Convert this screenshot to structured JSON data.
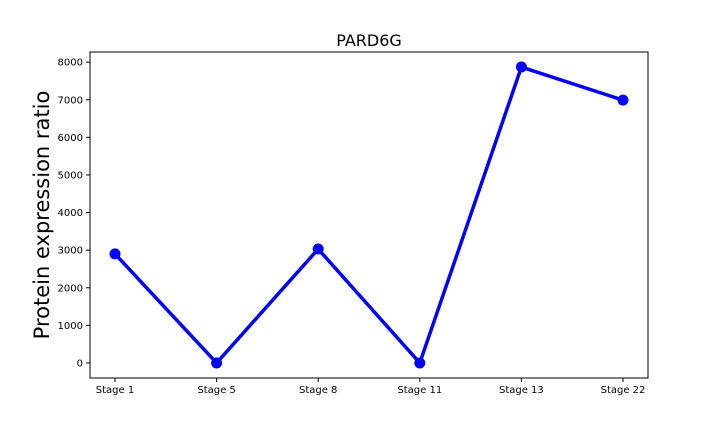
{
  "chart_data": {
    "type": "line",
    "title": "PARD6G",
    "xlabel": "",
    "ylabel": "Protein expression ratio",
    "categories": [
      "Stage 1",
      "Stage 5",
      "Stage 8",
      "Stage 11",
      "Stage 13",
      "Stage 22"
    ],
    "series": [
      {
        "values": [
          2900,
          0,
          3030,
          0,
          7870,
          6990
        ]
      }
    ],
    "ylim": [
      -400,
      8270
    ],
    "yticks": [
      0,
      1000,
      2000,
      3000,
      4000,
      5000,
      6000,
      7000,
      8000
    ],
    "grid": false,
    "line_color": "#0000ff"
  }
}
